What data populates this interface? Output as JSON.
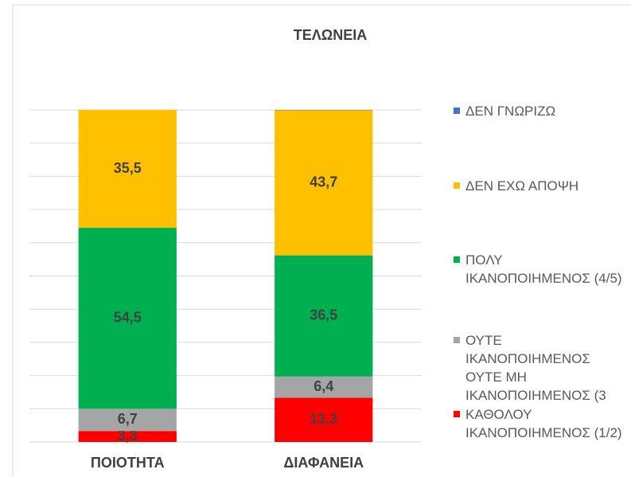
{
  "chart_data": {
    "type": "stacked_bar",
    "title": "ΤΕΛΩΝΕΙΑ",
    "categories": [
      "ΠΟΙΟΤΗΤΑ",
      "ΔΙΑΦΑΝΕΙΑ"
    ],
    "series": [
      {
        "name": "ΚΑΘΟΛΟΥ ΙΚΑΝΟΠΟΙΗΜΕΝΟΣ (1/2)",
        "color": "#ff0000",
        "values": [
          3.3,
          13.3
        ],
        "value_labels": [
          "3,3",
          "13,3"
        ]
      },
      {
        "name": "ΟΥΤΕ ΙΚΑΝΟΠΟΙΗΜΕΝΟΣ ΟΥΤΕ ΜΗ ΙΚΑΝΟΠΟΙΗΜΕΝΟΣ (3",
        "color": "#a5a5a5",
        "values": [
          6.7,
          6.4
        ],
        "value_labels": [
          "6,7",
          "6,4"
        ]
      },
      {
        "name": "ΠΟΛΥ ΙΚΑΝΟΠΟΙΗΜΕΝΟΣ (4/5)",
        "color": "#00b050",
        "values": [
          54.5,
          36.5
        ],
        "value_labels": [
          "54,5",
          "36,5"
        ]
      },
      {
        "name": "ΔΕΝ ΕΧΩ ΑΠΟΨΗ",
        "color": "#ffc000",
        "values": [
          35.5,
          43.7
        ],
        "value_labels": [
          "35,5",
          "43,7"
        ]
      },
      {
        "name": "ΔΕΝ ΓΝΩΡΙΖΩ",
        "color": "#4472c4",
        "values": [
          0,
          0.1
        ]
      }
    ],
    "ylim": [
      0,
      100
    ],
    "yticks": [
      0,
      10,
      20,
      30,
      40,
      50,
      60,
      70,
      80,
      90,
      100
    ],
    "grid": true,
    "legend": "right"
  }
}
